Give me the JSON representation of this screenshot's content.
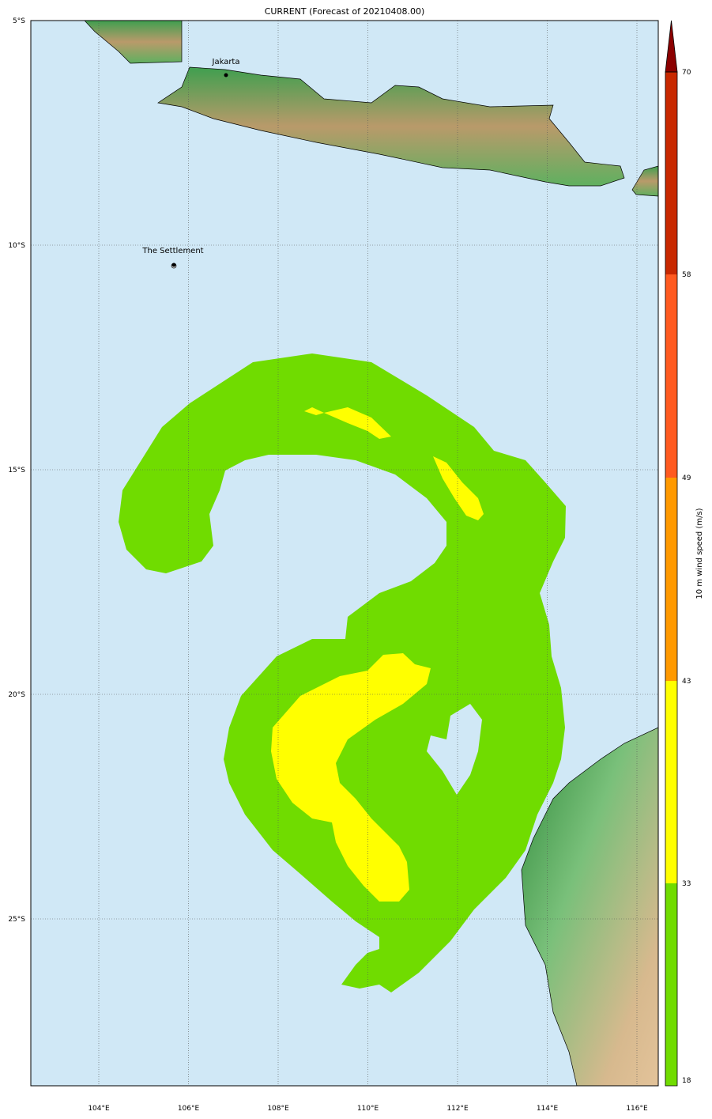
{
  "title": "CURRENT (Forecast of 20210408.00)",
  "map": {
    "lon_ticks": [
      "104°E",
      "106°E",
      "108°E",
      "110°E",
      "112°E",
      "114°E",
      "116°E"
    ],
    "lat_ticks": [
      "5°S",
      "10°S",
      "15°S",
      "20°S",
      "25°S"
    ],
    "cities": [
      {
        "name": "Jakarta",
        "lon": 106.8,
        "lat": -6.2
      },
      {
        "name": "The Settlement",
        "lon": 105.7,
        "lat": -10.4
      }
    ],
    "ocean_color": "#d0e8f6"
  },
  "colorbar": {
    "label": "10 m wind speed (m/s)",
    "ticks": [
      "18",
      "33",
      "43",
      "49",
      "58",
      "70"
    ],
    "colors": [
      "#70dc00",
      "#ffff00",
      "#ff9900",
      "#ff5a20",
      "#c82800",
      "#8b0000"
    ],
    "extend": "max"
  }
}
